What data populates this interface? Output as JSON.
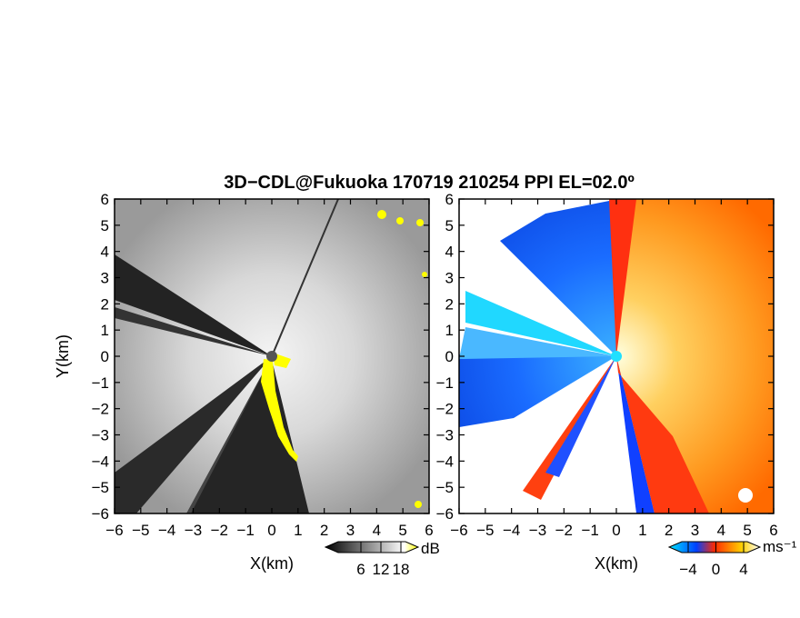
{
  "chart_data": {
    "type": "heatmap",
    "title": "3D−CDL@Fukuoka 170719 210254 PPI EL=02.0º",
    "panels": [
      {
        "name": "reflectivity",
        "xlabel": "X(km)",
        "ylabel": "Y(km)",
        "xlim": [
          -6,
          6
        ],
        "ylim": [
          -6,
          6
        ],
        "x_ticks": [
          "−6",
          "−5",
          "−4",
          "−3",
          "−2",
          "−1",
          "0",
          "1",
          "2",
          "3",
          "4",
          "5",
          "6"
        ],
        "y_ticks": [
          "6",
          "5",
          "4",
          "3",
          "2",
          "1",
          "0",
          "−1",
          "−2",
          "−3",
          "−4",
          "−5",
          "−6"
        ],
        "colorbar": {
          "unit": "dB",
          "ticks": [
            "6",
            "12",
            "18"
          ],
          "colors": [
            "#000000",
            "#ffffff",
            "#ffff00"
          ]
        }
      },
      {
        "name": "doppler-velocity",
        "xlabel": "X(km)",
        "ylabel": "",
        "xlim": [
          -6,
          6
        ],
        "ylim": [
          -6,
          6
        ],
        "x_ticks": [
          "−6",
          "−5",
          "−4",
          "−3",
          "−2",
          "−1",
          "0",
          "1",
          "2",
          "3",
          "4",
          "5",
          "6"
        ],
        "y_ticks": [
          "6",
          "5",
          "4",
          "3",
          "2",
          "1",
          "0",
          "−1",
          "−2",
          "−3",
          "−4",
          "−5",
          "−6"
        ],
        "colorbar": {
          "unit": "ms⁻¹",
          "ticks": [
            "−4",
            "0",
            "4"
          ],
          "colors": [
            "#00e5ff",
            "#0040ff",
            "#ff2a00",
            "#ffd000",
            "#ffffff"
          ]
        }
      }
    ]
  }
}
